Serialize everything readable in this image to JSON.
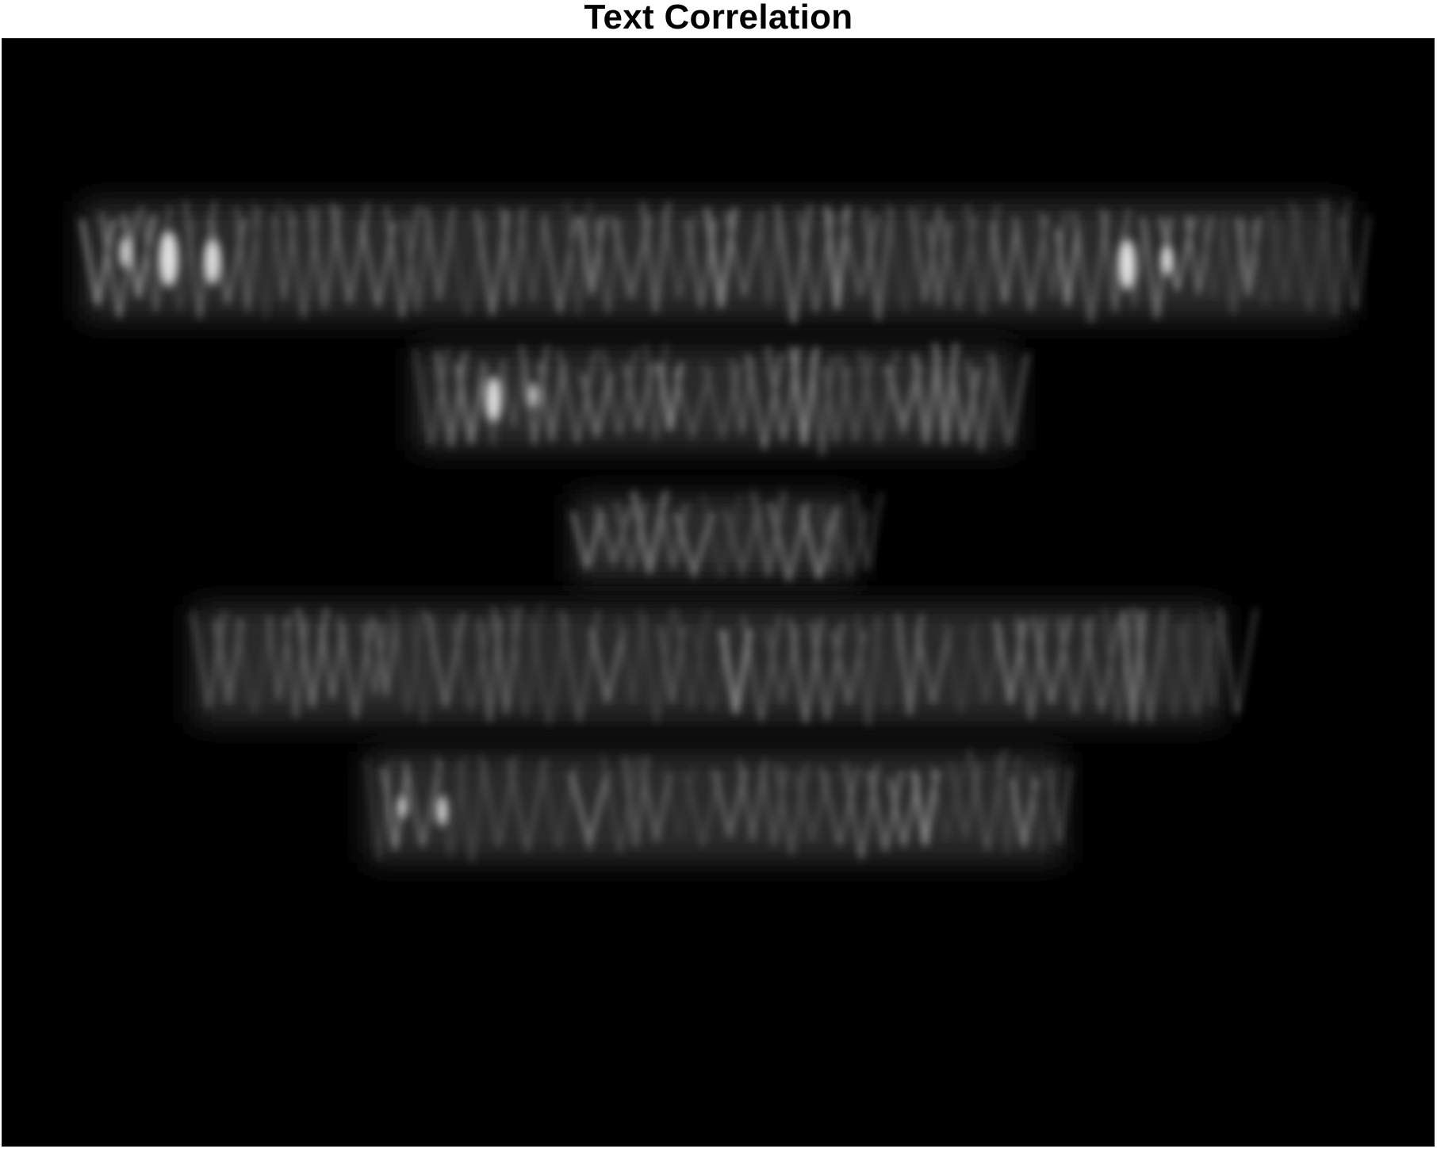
{
  "figure": {
    "title": "Text Correlation"
  },
  "image": {
    "description_colors": {
      "background": "#000000",
      "peak_color": "#ffffff",
      "mid_color": "#8a8a8a"
    },
    "colormap": "gray",
    "text_rows": 5
  }
}
